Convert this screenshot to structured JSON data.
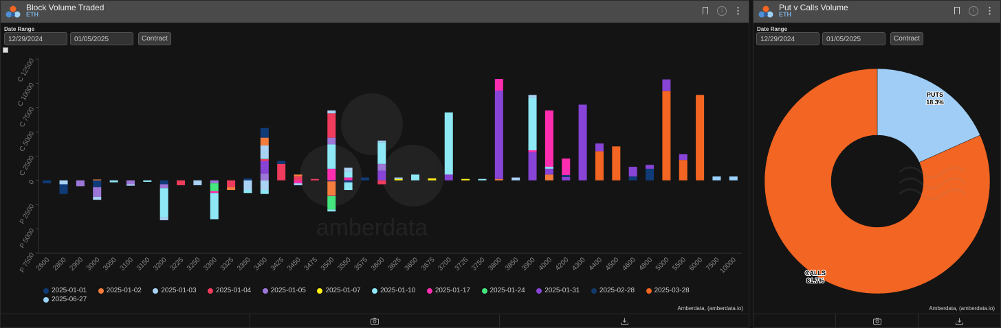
{
  "panels": [
    {
      "title": "Block Volume Traded",
      "subtitle": "ETH",
      "date_range_label": "Date Range",
      "start_date": "12/29/2024",
      "end_date": "01/05/2025",
      "contract_button": "Contract",
      "credit": "Amberdata, (amberdata.io)"
    },
    {
      "title": "Put v Calls Volume",
      "subtitle": "ETH",
      "date_range_label": "Date Range",
      "start_date": "12/29/2024",
      "end_date": "01/05/2025",
      "contract_button": "Contract",
      "credit": "Amberdata, (amberdata.io)"
    }
  ],
  "watermark": "amberdata",
  "icons": [
    "amberdata-logo-icon",
    "bookmark-icon",
    "info-icon",
    "more-icon",
    "camera-icon",
    "download-icon"
  ],
  "chart_data": [
    {
      "type": "bar",
      "stacked": true,
      "categories": [
        "2600",
        "2800",
        "2900",
        "3000",
        "3050",
        "3100",
        "3150",
        "3200",
        "3225",
        "3250",
        "3300",
        "3325",
        "3350",
        "3400",
        "3425",
        "3450",
        "3475",
        "3500",
        "3550",
        "3575",
        "3600",
        "3625",
        "3650",
        "3675",
        "3700",
        "3725",
        "3750",
        "3800",
        "3850",
        "3900",
        "4000",
        "4200",
        "4300",
        "4400",
        "4500",
        "4600",
        "4800",
        "5000",
        "5500",
        "6000",
        "7500",
        "10000"
      ],
      "yticks": [
        {
          "value": 12500,
          "label": "C 12500"
        },
        {
          "value": 10000,
          "label": "C 10000"
        },
        {
          "value": 7500,
          "label": "C 7500"
        },
        {
          "value": 5000,
          "label": "C 5000"
        },
        {
          "value": 2500,
          "label": "C 2500"
        },
        {
          "value": 0,
          "label": "0"
        },
        {
          "value": -2500,
          "label": "P 2500"
        },
        {
          "value": -5000,
          "label": "P 5000"
        },
        {
          "value": -7500,
          "label": "P 7500"
        }
      ],
      "ylim": [
        -7500,
        12500
      ],
      "legend_position": "bottom",
      "series": [
        {
          "name": "2025-01-01",
          "color": "#0f3b78"
        },
        {
          "name": "2025-01-02",
          "color": "#f47c3c"
        },
        {
          "name": "2025-01-03",
          "color": "#a9d2f5"
        },
        {
          "name": "2025-01-04",
          "color": "#ef3b5c"
        },
        {
          "name": "2025-01-05",
          "color": "#9c77d8"
        },
        {
          "name": "2025-01-07",
          "color": "#fff018"
        },
        {
          "name": "2025-01-10",
          "color": "#8ee8f5"
        },
        {
          "name": "2025-01-17",
          "color": "#ff2eb0"
        },
        {
          "name": "2025-01-24",
          "color": "#44e67d"
        },
        {
          "name": "2025-01-31",
          "color": "#8844d6"
        },
        {
          "name": "2025-02-28",
          "color": "#123a6a"
        },
        {
          "name": "2025-03-28",
          "color": "#f26522"
        },
        {
          "name": "2025-06-27",
          "color": "#9ad2ff"
        }
      ],
      "stacks": [
        {
          "cat": "2600",
          "s": [
            [
              0,
              -300
            ]
          ]
        },
        {
          "cat": "2800",
          "s": [
            [
              2,
              -400
            ],
            [
              0,
              -1000
            ]
          ]
        },
        {
          "cat": "2900",
          "s": [
            [
              4,
              -600
            ]
          ]
        },
        {
          "cat": "3000",
          "s": [
            [
              1,
              100
            ],
            [
              0,
              -700
            ],
            [
              4,
              -1000
            ],
            [
              2,
              -300
            ]
          ]
        },
        {
          "cat": "3050",
          "s": [
            [
              6,
              -200
            ]
          ]
        },
        {
          "cat": "3100",
          "s": [
            [
              4,
              -400
            ],
            [
              2,
              -150
            ]
          ]
        },
        {
          "cat": "3150",
          "s": [
            [
              6,
              -150
            ]
          ]
        },
        {
          "cat": "3200",
          "s": [
            [
              0,
              -400
            ],
            [
              4,
              -400
            ],
            [
              6,
              -3000
            ],
            [
              2,
              -300
            ]
          ]
        },
        {
          "cat": "3225",
          "s": [
            [
              3,
              -500
            ]
          ]
        },
        {
          "cat": "3250",
          "s": [
            [
              2,
              -500
            ]
          ]
        },
        {
          "cat": "3300",
          "s": [
            [
              4,
              -300
            ],
            [
              8,
              -800
            ],
            [
              7,
              -200
            ],
            [
              6,
              -2700
            ]
          ]
        },
        {
          "cat": "3325",
          "s": [
            [
              3,
              -700
            ],
            [
              1,
              -300
            ]
          ]
        },
        {
          "cat": "3350",
          "s": [
            [
              0,
              200
            ],
            [
              2,
              -1000
            ],
            [
              6,
              -300
            ]
          ]
        },
        {
          "cat": "3400",
          "s": [
            [
              4,
              700
            ],
            [
              9,
              1300
            ],
            [
              3,
              200
            ],
            [
              6,
              100
            ],
            [
              2,
              1300
            ],
            [
              1,
              800
            ],
            [
              0,
              1000
            ],
            [
              2,
              -1000
            ],
            [
              6,
              -400
            ]
          ]
        },
        {
          "cat": "3425",
          "s": [
            [
              3,
              1700
            ],
            [
              0,
              300
            ]
          ]
        },
        {
          "cat": "3450",
          "s": [
            [
              3,
              400
            ],
            [
              1,
              200
            ],
            [
              7,
              -300
            ],
            [
              2,
              -200
            ]
          ]
        },
        {
          "cat": "3475",
          "s": [
            [
              3,
              150
            ]
          ]
        },
        {
          "cat": "3500",
          "s": [
            [
              7,
              1200
            ],
            [
              6,
              2500
            ],
            [
              4,
              700
            ],
            [
              3,
              2500
            ],
            [
              2,
              300
            ],
            [
              0,
              -100
            ],
            [
              1,
              -1400
            ],
            [
              3,
              -100
            ],
            [
              8,
              -1400
            ],
            [
              6,
              -200
            ]
          ]
        },
        {
          "cat": "3550",
          "s": [
            [
              7,
              300
            ],
            [
              6,
              600
            ],
            [
              2,
              400
            ],
            [
              0,
              -200
            ],
            [
              6,
              -800
            ]
          ]
        },
        {
          "cat": "3575",
          "s": [
            [
              0,
              300
            ]
          ]
        },
        {
          "cat": "3600",
          "s": [
            [
              9,
              1000
            ],
            [
              4,
              700
            ],
            [
              6,
              2200
            ],
            [
              2,
              200
            ],
            [
              3,
              -400
            ]
          ]
        },
        {
          "cat": "3625",
          "s": [
            [
              5,
              150
            ],
            [
              2,
              150
            ]
          ]
        },
        {
          "cat": "3650",
          "s": [
            [
              6,
              600
            ]
          ]
        },
        {
          "cat": "3675",
          "s": [
            [
              5,
              200
            ]
          ]
        },
        {
          "cat": "3700",
          "s": [
            [
              9,
              600
            ],
            [
              6,
              6400
            ]
          ]
        },
        {
          "cat": "3725",
          "s": [
            [
              5,
              150
            ]
          ]
        },
        {
          "cat": "3750",
          "s": [
            [
              6,
              150
            ]
          ]
        },
        {
          "cat": "3800",
          "s": [
            [
              1,
              150
            ],
            [
              9,
              9100
            ],
            [
              7,
              1200
            ]
          ]
        },
        {
          "cat": "3850",
          "s": [
            [
              2,
              300
            ]
          ]
        },
        {
          "cat": "3900",
          "s": [
            [
              9,
              2900
            ],
            [
              7,
              200
            ],
            [
              6,
              5400
            ],
            [
              2,
              300
            ]
          ]
        },
        {
          "cat": "4000",
          "s": [
            [
              1,
              600
            ],
            [
              9,
              600
            ],
            [
              6,
              200
            ],
            [
              7,
              5800
            ]
          ]
        },
        {
          "cat": "4200",
          "s": [
            [
              9,
              350
            ],
            [
              0,
              200
            ],
            [
              7,
              1700
            ]
          ]
        },
        {
          "cat": "4300",
          "s": [
            [
              9,
              7800
            ]
          ]
        },
        {
          "cat": "4400",
          "s": [
            [
              11,
              3000
            ],
            [
              9,
              800
            ]
          ]
        },
        {
          "cat": "4500",
          "s": [
            [
              11,
              3500
            ]
          ]
        },
        {
          "cat": "4600",
          "s": [
            [
              0,
              400
            ],
            [
              9,
              1000
            ]
          ]
        },
        {
          "cat": "4800",
          "s": [
            [
              0,
              1200
            ],
            [
              9,
              400
            ]
          ]
        },
        {
          "cat": "5000",
          "s": [
            [
              11,
              9200
            ],
            [
              9,
              1200
            ]
          ]
        },
        {
          "cat": "5500",
          "s": [
            [
              11,
              2100
            ],
            [
              9,
              600
            ]
          ]
        },
        {
          "cat": "6000",
          "s": [
            [
              11,
              8800
            ]
          ]
        },
        {
          "cat": "7500",
          "s": [
            [
              12,
              400
            ]
          ]
        },
        {
          "cat": "10000",
          "s": [
            [
              12,
              400
            ]
          ]
        }
      ]
    },
    {
      "type": "pie",
      "donut": true,
      "slices": [
        {
          "label": "PUTS",
          "percent": 18.3,
          "value_label": "18.3%",
          "color": "#9fcdf6"
        },
        {
          "label": "CALLS",
          "percent": 81.7,
          "value_label": "81.7%",
          "color": "#f26522"
        }
      ]
    }
  ]
}
